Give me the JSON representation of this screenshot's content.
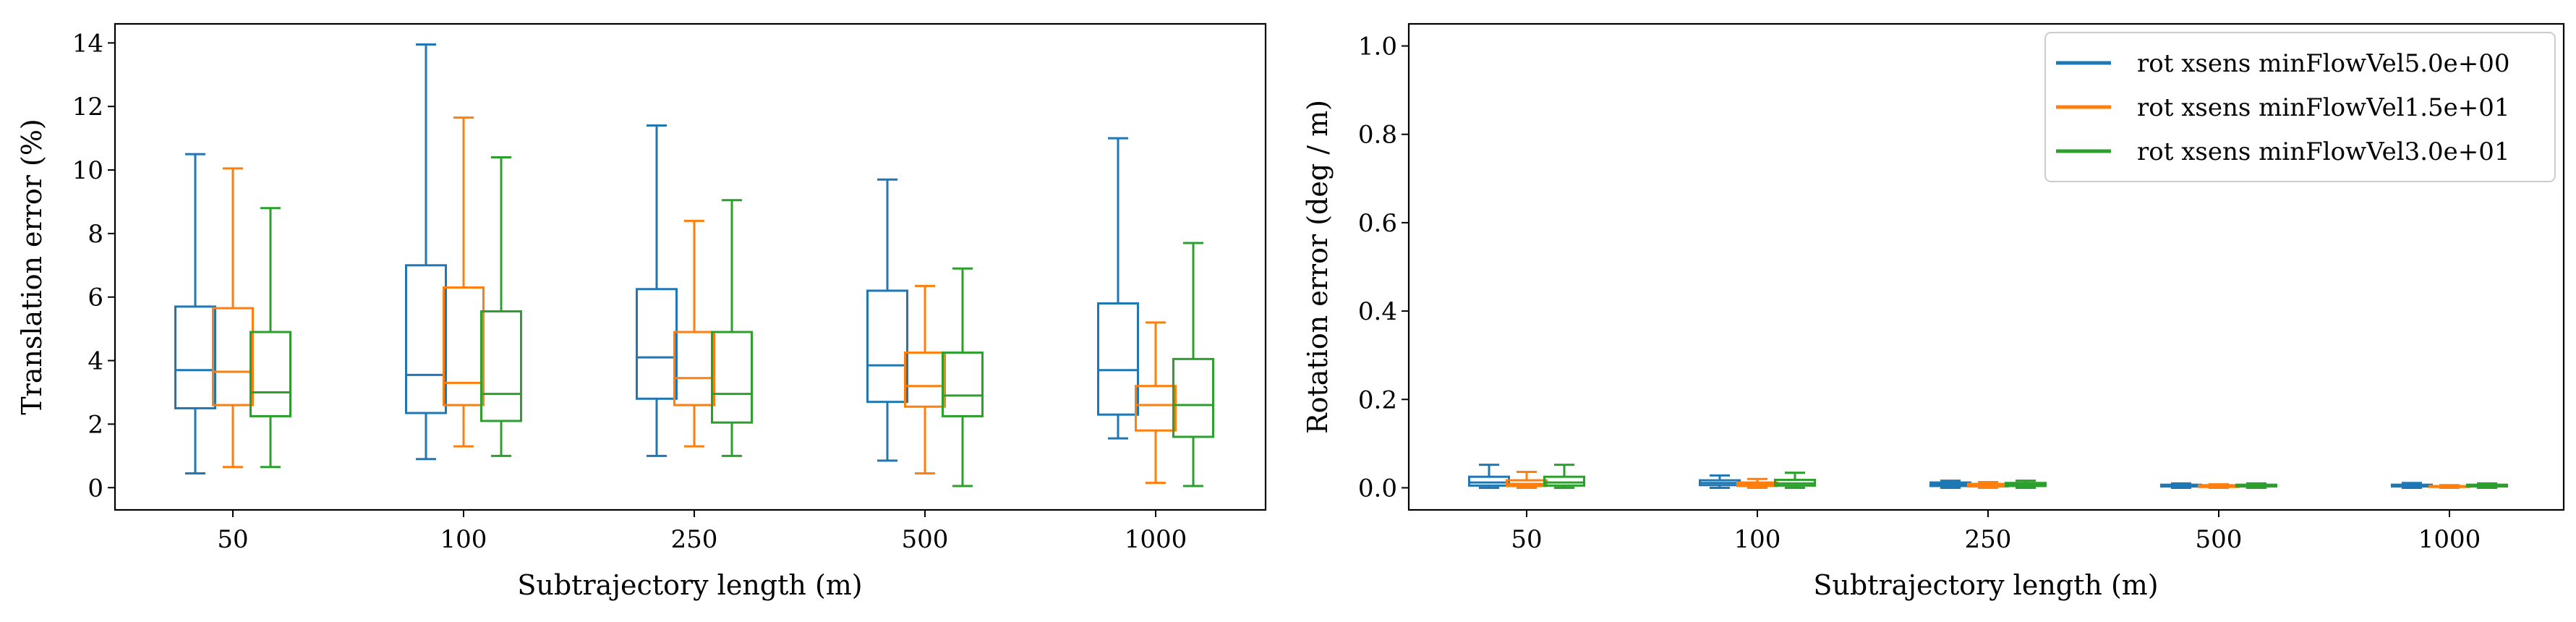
{
  "chart_data": [
    {
      "type": "box",
      "xlabel": "Subtrajectory length (m)",
      "ylabel": "Translation error (%)",
      "categories": [
        "50",
        "100",
        "250",
        "500",
        "1000"
      ],
      "ylim": [
        -0.7,
        14.6
      ],
      "yticks": [
        "0",
        "2",
        "4",
        "6",
        "8",
        "10",
        "12",
        "14"
      ],
      "legend": "none",
      "series": [
        {
          "color": "#1f77b4",
          "boxes": [
            {
              "whislo": 0.45,
              "q1": 2.5,
              "med": 3.7,
              "q3": 5.7,
              "whishi": 10.5
            },
            {
              "whislo": 0.9,
              "q1": 2.35,
              "med": 3.55,
              "q3": 7.0,
              "whishi": 13.95
            },
            {
              "whislo": 1.0,
              "q1": 2.8,
              "med": 4.1,
              "q3": 6.25,
              "whishi": 11.4
            },
            {
              "whislo": 0.85,
              "q1": 2.7,
              "med": 3.85,
              "q3": 6.2,
              "whishi": 9.7
            },
            {
              "whislo": 1.55,
              "q1": 2.3,
              "med": 3.7,
              "q3": 5.8,
              "whishi": 11.0
            }
          ]
        },
        {
          "color": "#ff7f0e",
          "boxes": [
            {
              "whislo": 0.65,
              "q1": 2.6,
              "med": 3.65,
              "q3": 5.65,
              "whishi": 10.05
            },
            {
              "whislo": 1.3,
              "q1": 2.6,
              "med": 3.3,
              "q3": 6.3,
              "whishi": 11.65
            },
            {
              "whislo": 1.3,
              "q1": 2.6,
              "med": 3.45,
              "q3": 4.9,
              "whishi": 8.4
            },
            {
              "whislo": 0.45,
              "q1": 2.55,
              "med": 3.2,
              "q3": 4.25,
              "whishi": 6.35
            },
            {
              "whislo": 0.15,
              "q1": 1.8,
              "med": 2.6,
              "q3": 3.2,
              "whishi": 5.2
            }
          ]
        },
        {
          "color": "#2ca02c",
          "boxes": [
            {
              "whislo": 0.65,
              "q1": 2.25,
              "med": 3.0,
              "q3": 4.9,
              "whishi": 8.8
            },
            {
              "whislo": 1.0,
              "q1": 2.1,
              "med": 2.95,
              "q3": 5.55,
              "whishi": 10.4
            },
            {
              "whislo": 1.0,
              "q1": 2.05,
              "med": 2.95,
              "q3": 4.9,
              "whishi": 9.05
            },
            {
              "whislo": 0.05,
              "q1": 2.25,
              "med": 2.9,
              "q3": 4.25,
              "whishi": 6.9
            },
            {
              "whislo": 0.05,
              "q1": 1.6,
              "med": 2.6,
              "q3": 4.05,
              "whishi": 7.7
            }
          ]
        }
      ]
    },
    {
      "type": "box",
      "xlabel": "Subtrajectory length (m)",
      "ylabel": "Rotation error (deg / m)",
      "categories": [
        "50",
        "100",
        "250",
        "500",
        "1000"
      ],
      "ylim": [
        -0.05,
        1.05
      ],
      "yticks": [
        "0.0",
        "0.2",
        "0.4",
        "0.6",
        "0.8",
        "1.0"
      ],
      "legend": "top-right",
      "series": [
        {
          "name": "rot xsens minFlowVel5.0e+00",
          "color": "#1f77b4",
          "boxes": [
            {
              "whislo": 0.0,
              "q1": 0.005,
              "med": 0.012,
              "q3": 0.025,
              "whishi": 0.052
            },
            {
              "whislo": 0.0,
              "q1": 0.006,
              "med": 0.011,
              "q3": 0.017,
              "whishi": 0.028
            },
            {
              "whislo": 0.0,
              "q1": 0.004,
              "med": 0.008,
              "q3": 0.012,
              "whishi": 0.016
            },
            {
              "whislo": 0.0,
              "q1": 0.003,
              "med": 0.005,
              "q3": 0.007,
              "whishi": 0.01
            },
            {
              "whislo": 0.0,
              "q1": 0.003,
              "med": 0.005,
              "q3": 0.007,
              "whishi": 0.011
            }
          ]
        },
        {
          "name": "rot xsens minFlowVel1.5e+01",
          "color": "#ff7f0e",
          "boxes": [
            {
              "whislo": 0.0,
              "q1": 0.004,
              "med": 0.009,
              "q3": 0.017,
              "whishi": 0.036
            },
            {
              "whislo": 0.0,
              "q1": 0.004,
              "med": 0.008,
              "q3": 0.012,
              "whishi": 0.02
            },
            {
              "whislo": 0.0,
              "q1": 0.003,
              "med": 0.006,
              "q3": 0.009,
              "whishi": 0.013
            },
            {
              "whislo": 0.0,
              "q1": 0.002,
              "med": 0.004,
              "q3": 0.006,
              "whishi": 0.008
            },
            {
              "whislo": 0.0,
              "q1": 0.002,
              "med": 0.003,
              "q3": 0.004,
              "whishi": 0.006
            }
          ]
        },
        {
          "name": "rot xsens minFlowVel3.0e+01",
          "color": "#2ca02c",
          "boxes": [
            {
              "whislo": 0.0,
              "q1": 0.005,
              "med": 0.012,
              "q3": 0.025,
              "whishi": 0.052
            },
            {
              "whislo": 0.0,
              "q1": 0.005,
              "med": 0.01,
              "q3": 0.018,
              "whishi": 0.034
            },
            {
              "whislo": 0.0,
              "q1": 0.004,
              "med": 0.007,
              "q3": 0.011,
              "whishi": 0.016
            },
            {
              "whislo": 0.0,
              "q1": 0.003,
              "med": 0.005,
              "q3": 0.007,
              "whishi": 0.01
            },
            {
              "whislo": 0.0,
              "q1": 0.003,
              "med": 0.005,
              "q3": 0.007,
              "whishi": 0.01
            }
          ]
        }
      ]
    }
  ]
}
